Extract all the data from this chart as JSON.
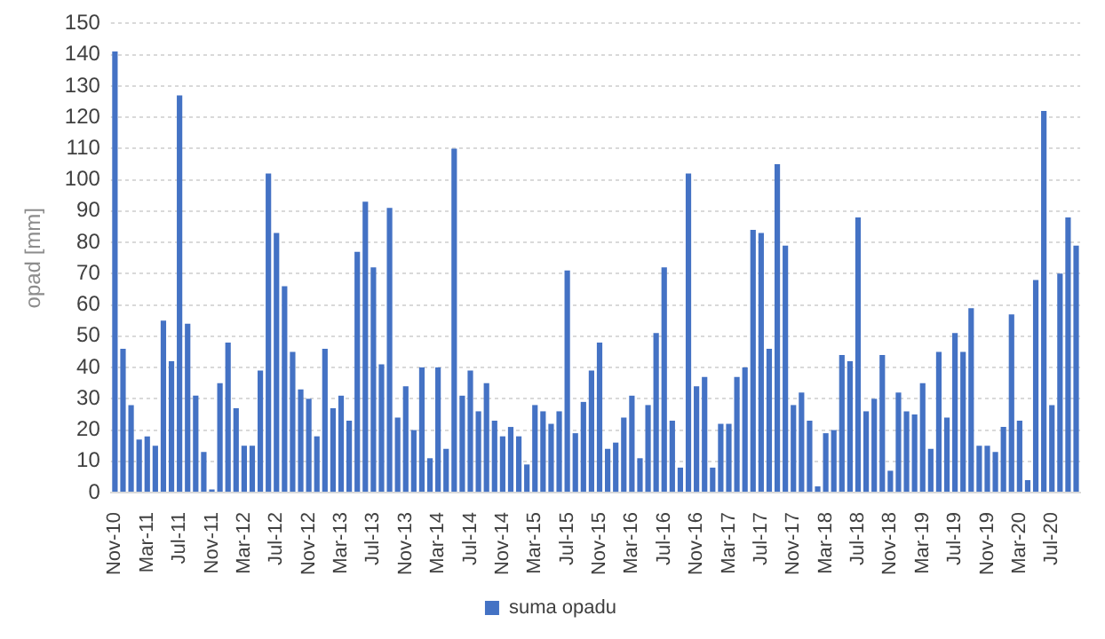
{
  "chart_data": {
    "type": "bar",
    "ylabel": "opad [mm]",
    "legend": "bottom",
    "grid": "y",
    "categories": [
      "Nov-10",
      null,
      null,
      null,
      "Mar-11",
      null,
      null,
      null,
      "Jul-11",
      null,
      null,
      null,
      "Nov-11",
      null,
      null,
      null,
      "Mar-12",
      null,
      null,
      null,
      "Jul-12",
      null,
      null,
      null,
      "Nov-12",
      null,
      null,
      null,
      "Mar-13",
      null,
      null,
      null,
      "Jul-13",
      null,
      null,
      null,
      "Nov-13",
      null,
      null,
      null,
      "Mar-14",
      null,
      null,
      null,
      "Jul-14",
      null,
      null,
      null,
      "Nov-14",
      null,
      null,
      null,
      "Mar-15",
      null,
      null,
      null,
      "Jul-15",
      null,
      null,
      null,
      "Nov-15",
      null,
      null,
      null,
      "Mar-16",
      null,
      null,
      null,
      "Jul-16",
      null,
      null,
      null,
      "Nov-16",
      null,
      null,
      null,
      "Mar-17",
      null,
      null,
      null,
      "Jul-17",
      null,
      null,
      null,
      "Nov-17",
      null,
      null,
      null,
      "Mar-18",
      null,
      null,
      null,
      "Jul-18",
      null,
      null,
      null,
      "Nov-18",
      null,
      null,
      null,
      "Mar-19",
      null,
      null,
      null,
      "Jul-19",
      null,
      null,
      null,
      "Nov-19",
      null,
      null,
      null,
      "Mar-20",
      null,
      null,
      null,
      "Jul-20",
      null,
      null,
      null
    ],
    "ylim": [
      0,
      150
    ],
    "yticks": [
      0,
      10,
      20,
      30,
      40,
      50,
      60,
      70,
      80,
      90,
      100,
      110,
      120,
      130,
      140,
      150
    ],
    "series": [
      {
        "name": "suma opadu",
        "color": "#4472c4",
        "values": [
          141,
          46,
          28,
          17,
          18,
          15,
          55,
          42,
          127,
          54,
          31,
          13,
          1,
          35,
          48,
          27,
          15,
          15,
          39,
          102,
          83,
          66,
          45,
          33,
          30,
          18,
          46,
          27,
          31,
          23,
          77,
          93,
          72,
          41,
          91,
          24,
          34,
          20,
          40,
          11,
          40,
          14,
          110,
          31,
          39,
          26,
          35,
          23,
          18,
          21,
          18,
          9,
          28,
          26,
          22,
          26,
          71,
          19,
          29,
          39,
          48,
          14,
          16,
          24,
          31,
          11,
          28,
          51,
          72,
          23,
          8,
          102,
          34,
          37,
          8,
          22,
          22,
          37,
          40,
          84,
          83,
          46,
          105,
          79,
          28,
          32,
          23,
          2,
          19,
          20,
          44,
          42,
          88,
          26,
          30,
          44,
          7,
          32,
          26,
          25,
          35,
          14,
          45,
          24,
          51,
          45,
          59,
          15,
          15,
          13,
          21,
          57,
          23,
          4,
          68,
          122,
          28,
          70,
          88,
          79
        ]
      }
    ]
  }
}
